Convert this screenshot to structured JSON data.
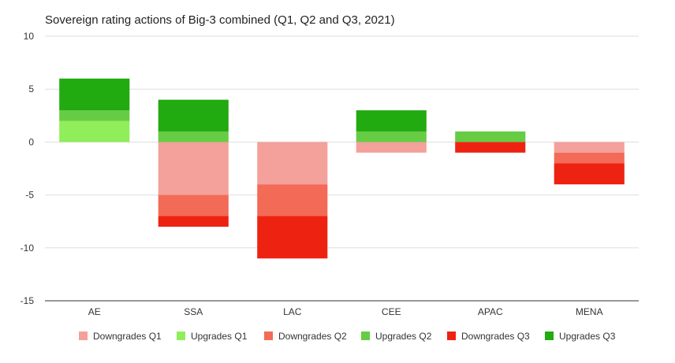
{
  "chart_data": {
    "type": "bar",
    "stacked": true,
    "title": "Sovereign rating actions of Big-3 combined (Q1, Q2 and Q3, 2021)",
    "xlabel": "",
    "ylabel": "",
    "categories": [
      "AE",
      "SSA",
      "LAC",
      "CEE",
      "APAC",
      "MENA"
    ],
    "ylim": [
      -15,
      10
    ],
    "yticks": [
      10,
      5,
      0,
      -5,
      -10,
      -15
    ],
    "grid": true,
    "legend_position": "bottom",
    "series": [
      {
        "name": "Downgrades Q1",
        "color": "#f4a09b",
        "values": [
          0,
          -5,
          -4,
          -1,
          0,
          -1
        ]
      },
      {
        "name": "Upgrades Q1",
        "color": "#90ee5a",
        "values": [
          2,
          0,
          0,
          0,
          0,
          0
        ]
      },
      {
        "name": "Downgrades Q2",
        "color": "#f36a56",
        "values": [
          0,
          -2,
          -3,
          0,
          0,
          -1
        ]
      },
      {
        "name": "Upgrades Q2",
        "color": "#66cc44",
        "values": [
          1,
          1,
          0,
          1,
          1,
          0
        ]
      },
      {
        "name": "Downgrades Q3",
        "color": "#ee2211",
        "values": [
          0,
          -1,
          -4,
          0,
          -1,
          -2
        ]
      },
      {
        "name": "Upgrades Q3",
        "color": "#22aa11",
        "values": [
          3,
          3,
          0,
          2,
          0,
          0
        ]
      }
    ]
  }
}
